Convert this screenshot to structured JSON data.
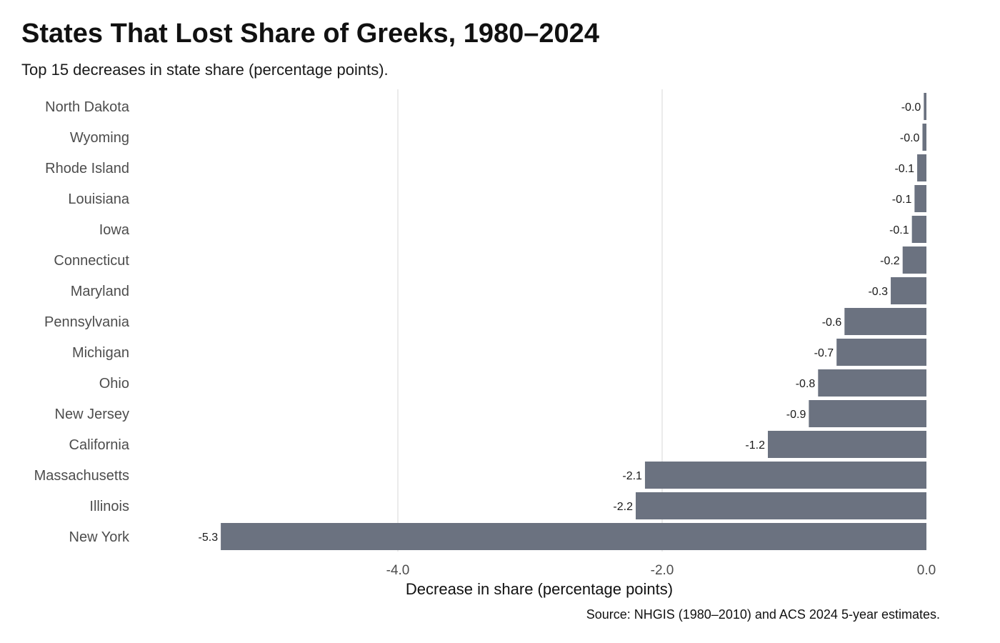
{
  "colors": {
    "bar": "#6b7280",
    "grid": "#ebebeb",
    "text": "#111111",
    "label": "#4d4d4d"
  },
  "chart_data": {
    "type": "bar",
    "orientation": "horizontal",
    "title": "States That Lost Share of Greeks, 1980–2024",
    "subtitle": "Top 15 decreases in state share (percentage points).",
    "xlabel": "Decrease in share (percentage points)",
    "ylabel": "",
    "caption": "Source: NHGIS (1980–2010) and ACS 2024 5-year estimates.",
    "xlim": [
      -5.3,
      0.0
    ],
    "xticks": [
      -4.0,
      -2.0,
      0.0
    ],
    "xtick_labels": [
      "-4.0",
      "-2.0",
      "0.0"
    ],
    "grid": true,
    "categories": [
      "North Dakota",
      "Wyoming",
      "Rhode Island",
      "Louisiana",
      "Iowa",
      "Connecticut",
      "Maryland",
      "Pennsylvania",
      "Michigan",
      "Ohio",
      "New Jersey",
      "California",
      "Massachusetts",
      "Illinois",
      "New York"
    ],
    "values": [
      -0.02,
      -0.03,
      -0.07,
      -0.09,
      -0.11,
      -0.18,
      -0.27,
      -0.62,
      -0.68,
      -0.82,
      -0.89,
      -1.2,
      -2.13,
      -2.2,
      -5.34
    ],
    "value_labels": [
      "-0.0",
      "-0.0",
      "-0.1",
      "-0.1",
      "-0.1",
      "-0.2",
      "-0.3",
      "-0.6",
      "-0.7",
      "-0.8",
      "-0.9",
      "-1.2",
      "-2.1",
      "-2.2",
      "-5.3"
    ]
  }
}
